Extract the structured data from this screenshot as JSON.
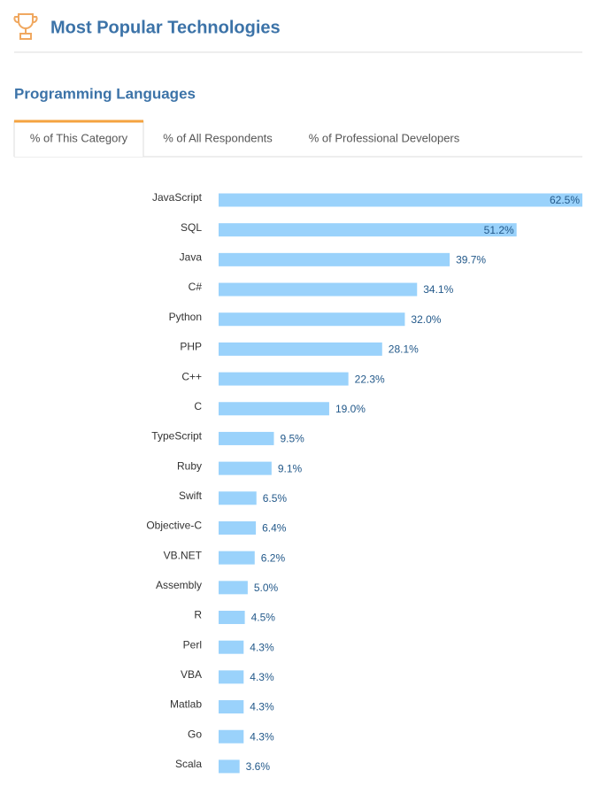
{
  "header": {
    "title": "Most Popular Technologies"
  },
  "section": {
    "title": "Programming Languages"
  },
  "tabs": [
    "% of This Category",
    "% of All Respondents",
    "% of Professional Developers"
  ],
  "chart_data": {
    "type": "bar",
    "orientation": "horizontal",
    "color": "#9ad2fb",
    "categories": [
      "JavaScript",
      "SQL",
      "Java",
      "C#",
      "Python",
      "PHP",
      "C++",
      "C",
      "TypeScript",
      "Ruby",
      "Swift",
      "Objective-C",
      "VB.NET",
      "Assembly",
      "R",
      "Perl",
      "VBA",
      "Matlab",
      "Go",
      "Scala"
    ],
    "values": [
      62.5,
      51.2,
      39.7,
      34.1,
      32.0,
      28.1,
      22.3,
      19.0,
      9.5,
      9.1,
      6.5,
      6.4,
      6.2,
      5.0,
      4.5,
      4.3,
      4.3,
      4.3,
      4.3,
      3.6
    ],
    "value_labels": [
      "62.5%",
      "51.2%",
      "39.7%",
      "34.1%",
      "32.0%",
      "28.1%",
      "22.3%",
      "19.0%",
      "9.5%",
      "9.1%",
      "6.5%",
      "6.4%",
      "6.2%",
      "5.0%",
      "4.5%",
      "4.3%",
      "4.3%",
      "4.3%",
      "4.3%",
      "3.6%"
    ]
  }
}
